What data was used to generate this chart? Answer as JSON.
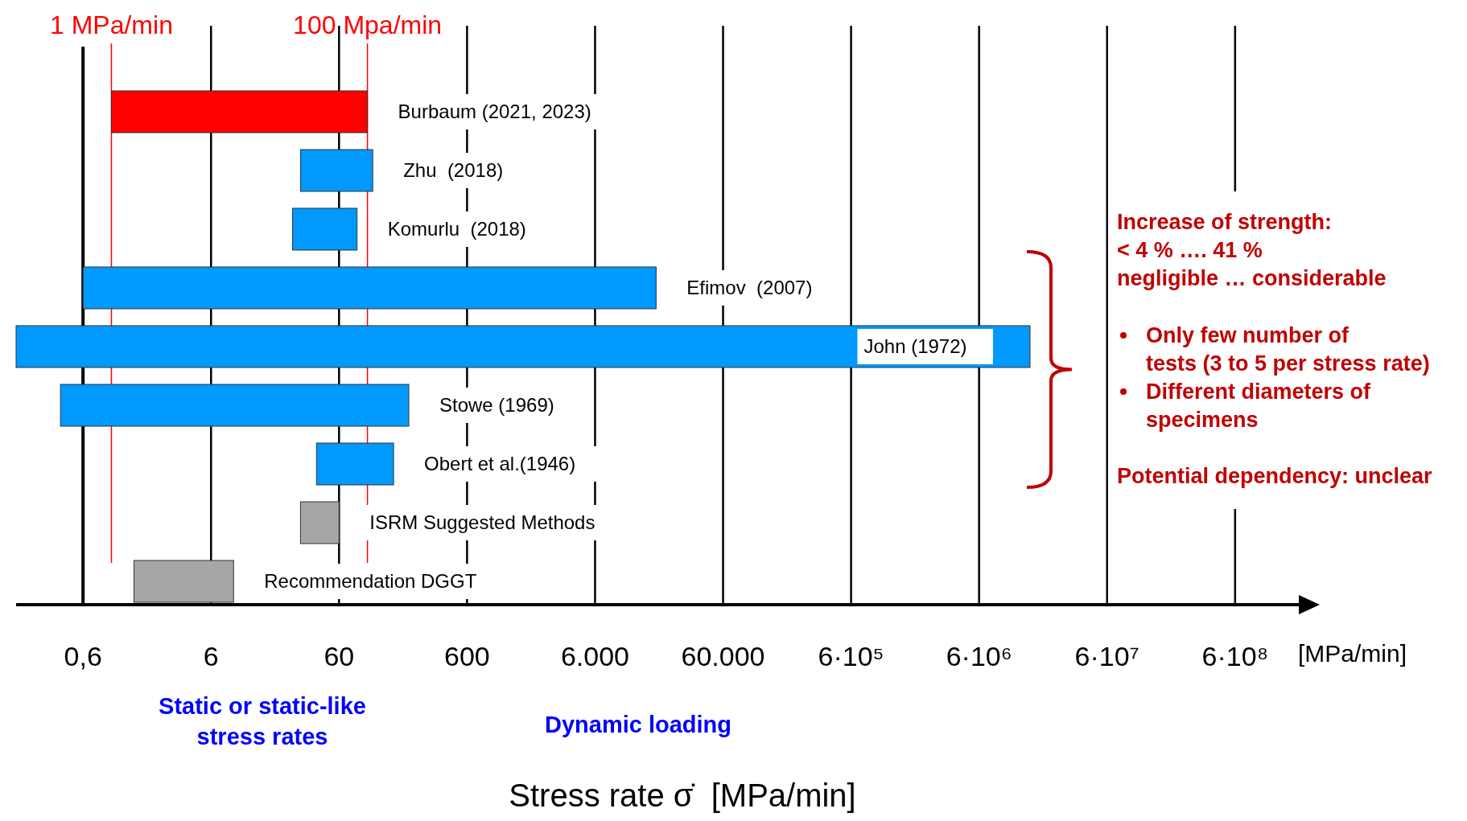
{
  "chart_data": {
    "type": "bar",
    "orientation": "horizontal",
    "log": "x",
    "grid": "x",
    "categories": [
      "Burbaum (2021, 2023)",
      "Zhu  (2018)",
      "Komurlu  (2018)",
      "Efimov  (2007)",
      "John (1972)",
      "Stowe (1969)",
      "Obert et al.(1946)",
      "ISRM Suggested Methods",
      "Recommendation DGGT"
    ],
    "base": [
      1,
      30,
      26,
      0.6,
      0.18,
      0.4,
      40,
      30,
      1.5
    ],
    "values": [
      99,
      80,
      57,
      18000,
      15000000,
      210,
      120,
      30,
      7.5
    ],
    "colors": [
      "#ff0000",
      "#0099ff",
      "#0099ff",
      "#0099ff",
      "#0099ff",
      "#0099ff",
      "#0099ff",
      "#a6a6a6",
      "#a6a6a6"
    ],
    "xlim": [
      0.18,
      2000000000
    ],
    "xticks": [
      {
        "value": 0.6,
        "label": "0,6"
      },
      6,
      60,
      600,
      {
        "value": 6000,
        "label": "6.000"
      },
      {
        "value": 60000,
        "label": "60.000"
      },
      {
        "value": 600000,
        "label": "6·10⁵"
      },
      {
        "value": 6000000,
        "label": "6·10⁶"
      },
      {
        "value": 60000000,
        "label": "6·10⁷"
      },
      {
        "value": 600000000,
        "label": "6·10⁸"
      }
    ],
    "xlabel": "Stress rate σ̇  [MPa/min]",
    "ref_lines": [
      {
        "axis": "x",
        "value": 0.6,
        "color": "#000000"
      },
      {
        "axis": "x",
        "value": 1,
        "label": "1 MPa/min",
        "color": "#ff0000"
      },
      {
        "axis": "x",
        "value": 100,
        "label": "100 Mpa/min",
        "color": "#ff0000"
      }
    ],
    "annotations": [
      "[MPa/min]",
      "Static or static-like stress rates",
      "Dynamic loading",
      "Increase of strength:",
      "< 4 % ….  41 %",
      "negligible … considerable",
      "Only few number of tests (3 to 5 per stress rate)",
      "Different diameters of specimens",
      "Potential dependency: unclear"
    ]
  }
}
